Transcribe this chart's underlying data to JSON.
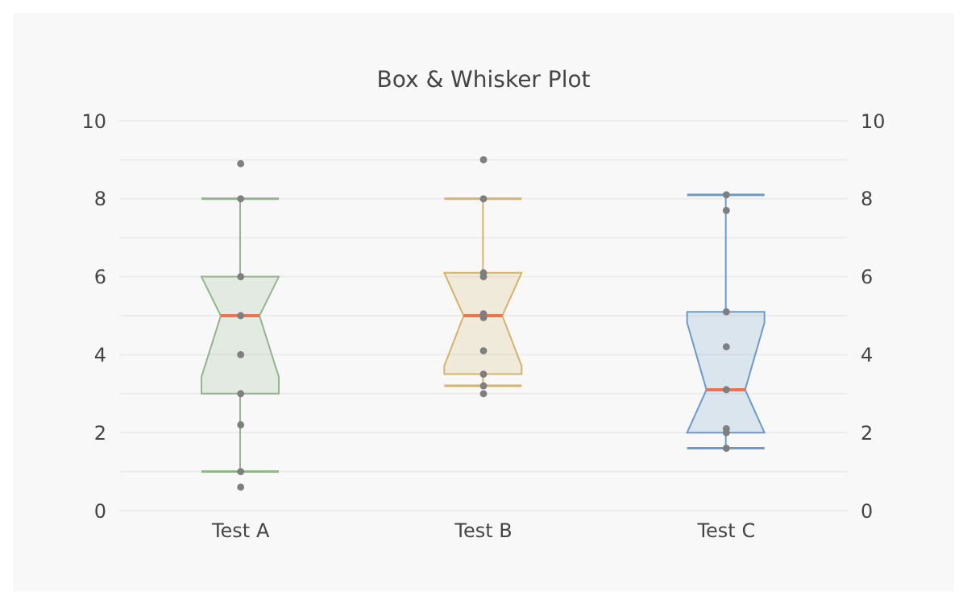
{
  "chart_data": {
    "type": "box",
    "title": "Box & Whisker Plot",
    "categories": [
      "Test A",
      "Test B",
      "Test C"
    ],
    "colors": [
      "#93b58c",
      "#d4b46a",
      "#6b9ac8"
    ],
    "boxes": [
      {
        "low": 1,
        "q1": 3,
        "median": 5,
        "q3": 6,
        "high": 8
      },
      {
        "low": 3.2,
        "q1": 3.5,
        "median": 5,
        "q3": 6.1,
        "high": 8
      },
      {
        "low": 1.6,
        "q1": 2,
        "median": 3.1,
        "q3": 5.1,
        "high": 8.1
      }
    ],
    "series": [
      {
        "type": "scatter",
        "color": "#7f7f7f",
        "x": [
          "Test A",
          "Test A",
          "Test A",
          "Test A",
          "Test A",
          "Test A",
          "Test A",
          "Test A",
          "Test A",
          "Test B",
          "Test B",
          "Test B",
          "Test B",
          "Test B",
          "Test B",
          "Test B",
          "Test B",
          "Test B",
          "Test B",
          "Test C",
          "Test C",
          "Test C",
          "Test C",
          "Test C",
          "Test C",
          "Test C",
          "Test C"
        ],
        "values": [
          0.6,
          1,
          2.2,
          3,
          4,
          5,
          6,
          8,
          8.9,
          3,
          3.2,
          3.5,
          4.1,
          4.95,
          5.05,
          6,
          6.1,
          8,
          9,
          1.6,
          2,
          2.1,
          3.1,
          4.2,
          5.1,
          7.7,
          8.1
        ]
      }
    ],
    "ylim": [
      0,
      10
    ],
    "yticks": [
      0,
      {
        "value": 1,
        "label": null
      },
      2,
      {
        "value": 3,
        "label": null
      },
      4,
      {
        "value": 5,
        "label": null
      },
      6,
      {
        "value": 7,
        "label": null
      },
      8,
      {
        "value": 9,
        "label": null
      },
      10
    ],
    "y2lim": [
      0,
      10
    ],
    "y2ticks": [
      0,
      2,
      4,
      6,
      8,
      10
    ],
    "grid": "y"
  }
}
